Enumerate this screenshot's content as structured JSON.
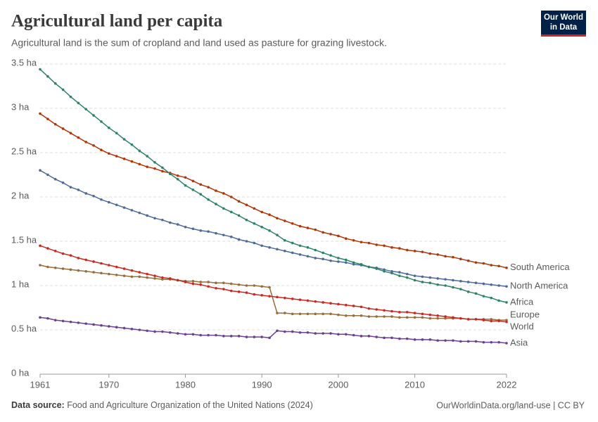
{
  "chart_data": {
    "type": "line",
    "title": "Agricultural land per capita",
    "subtitle": "Agricultural land is the sum of cropland and land used as pasture for grazing livestock.",
    "logo": [
      "Our World",
      "in Data"
    ],
    "source_label": "Data source:",
    "source": "Food and Agriculture Organization of the United Nations (2024)",
    "credit": "OurWorldinData.org/land-use | CC BY",
    "grid": true,
    "xlim": [
      1961,
      2022
    ],
    "xticks": [
      1961,
      1970,
      1980,
      1990,
      2000,
      2010,
      2022
    ],
    "ylim": [
      0,
      3.5
    ],
    "yticks": [
      {
        "value": 0,
        "label": "0 ha"
      },
      {
        "value": 0.5,
        "label": "0.5 ha"
      },
      {
        "value": 1,
        "label": "1 ha"
      },
      {
        "value": 1.5,
        "label": "1.5 ha"
      },
      {
        "value": 2,
        "label": "2 ha"
      },
      {
        "value": 2.5,
        "label": "2.5 ha"
      },
      {
        "value": 3,
        "label": "3 ha"
      },
      {
        "value": 3.5,
        "label": "3.5 ha"
      }
    ],
    "x": [
      1961,
      1962,
      1963,
      1964,
      1965,
      1966,
      1967,
      1968,
      1969,
      1970,
      1971,
      1972,
      1973,
      1974,
      1975,
      1976,
      1977,
      1978,
      1979,
      1980,
      1981,
      1982,
      1983,
      1984,
      1985,
      1986,
      1987,
      1988,
      1989,
      1990,
      1991,
      1992,
      1993,
      1994,
      1995,
      1996,
      1997,
      1998,
      1999,
      2000,
      2001,
      2002,
      2003,
      2004,
      2005,
      2006,
      2007,
      2008,
      2009,
      2010,
      2011,
      2012,
      2013,
      2014,
      2015,
      2016,
      2017,
      2018,
      2019,
      2020,
      2021,
      2022
    ],
    "series": [
      {
        "name": "South America",
        "color": "#b13507",
        "values": [
          2.94,
          2.88,
          2.82,
          2.77,
          2.72,
          2.67,
          2.62,
          2.58,
          2.53,
          2.49,
          2.46,
          2.43,
          2.4,
          2.37,
          2.34,
          2.32,
          2.29,
          2.27,
          2.24,
          2.22,
          2.18,
          2.14,
          2.11,
          2.07,
          2.04,
          2.0,
          1.95,
          1.91,
          1.87,
          1.83,
          1.8,
          1.76,
          1.73,
          1.7,
          1.67,
          1.65,
          1.63,
          1.6,
          1.58,
          1.56,
          1.53,
          1.51,
          1.49,
          1.48,
          1.46,
          1.45,
          1.43,
          1.42,
          1.4,
          1.39,
          1.38,
          1.36,
          1.35,
          1.33,
          1.32,
          1.3,
          1.28,
          1.26,
          1.25,
          1.23,
          1.22,
          1.2
        ]
      },
      {
        "name": "North America",
        "color": "#4c6a9c",
        "values": [
          2.3,
          2.25,
          2.2,
          2.16,
          2.11,
          2.08,
          2.04,
          2.01,
          1.97,
          1.94,
          1.91,
          1.88,
          1.85,
          1.82,
          1.79,
          1.76,
          1.74,
          1.71,
          1.69,
          1.66,
          1.64,
          1.62,
          1.61,
          1.59,
          1.57,
          1.55,
          1.52,
          1.5,
          1.48,
          1.45,
          1.43,
          1.41,
          1.39,
          1.37,
          1.35,
          1.33,
          1.31,
          1.3,
          1.28,
          1.27,
          1.26,
          1.24,
          1.23,
          1.21,
          1.2,
          1.18,
          1.16,
          1.15,
          1.13,
          1.11,
          1.1,
          1.09,
          1.08,
          1.07,
          1.06,
          1.05,
          1.04,
          1.03,
          1.02,
          1.01,
          1.0,
          0.99
        ]
      },
      {
        "name": "Africa",
        "color": "#2c8465",
        "values": [
          3.44,
          3.36,
          3.28,
          3.21,
          3.13,
          3.06,
          2.99,
          2.92,
          2.85,
          2.78,
          2.72,
          2.65,
          2.59,
          2.52,
          2.46,
          2.39,
          2.33,
          2.26,
          2.2,
          2.13,
          2.08,
          2.03,
          1.97,
          1.92,
          1.87,
          1.83,
          1.79,
          1.74,
          1.7,
          1.66,
          1.62,
          1.57,
          1.51,
          1.48,
          1.45,
          1.43,
          1.4,
          1.37,
          1.34,
          1.31,
          1.29,
          1.26,
          1.24,
          1.21,
          1.19,
          1.16,
          1.14,
          1.11,
          1.09,
          1.06,
          1.04,
          1.03,
          1.01,
          1.0,
          0.98,
          0.96,
          0.93,
          0.91,
          0.88,
          0.86,
          0.83,
          0.81
        ]
      },
      {
        "name": "Europe",
        "color": "#996d39",
        "values": [
          1.23,
          1.21,
          1.2,
          1.19,
          1.18,
          1.17,
          1.16,
          1.15,
          1.14,
          1.13,
          1.12,
          1.11,
          1.1,
          1.1,
          1.09,
          1.08,
          1.07,
          1.07,
          1.06,
          1.05,
          1.05,
          1.04,
          1.04,
          1.03,
          1.03,
          1.02,
          1.01,
          1.0,
          1.0,
          0.99,
          0.98,
          0.69,
          0.69,
          0.68,
          0.68,
          0.68,
          0.68,
          0.68,
          0.68,
          0.67,
          0.66,
          0.66,
          0.66,
          0.65,
          0.65,
          0.65,
          0.65,
          0.64,
          0.64,
          0.64,
          0.64,
          0.63,
          0.63,
          0.63,
          0.63,
          0.63,
          0.62,
          0.62,
          0.62,
          0.62,
          0.61,
          0.61
        ]
      },
      {
        "name": "World",
        "color": "#ce261e",
        "values": [
          1.45,
          1.42,
          1.39,
          1.36,
          1.34,
          1.31,
          1.29,
          1.27,
          1.25,
          1.23,
          1.21,
          1.19,
          1.17,
          1.15,
          1.13,
          1.11,
          1.09,
          1.08,
          1.06,
          1.04,
          1.02,
          1.01,
          0.99,
          0.97,
          0.96,
          0.94,
          0.93,
          0.92,
          0.9,
          0.89,
          0.88,
          0.87,
          0.86,
          0.85,
          0.84,
          0.83,
          0.82,
          0.81,
          0.8,
          0.79,
          0.78,
          0.77,
          0.76,
          0.74,
          0.73,
          0.72,
          0.71,
          0.7,
          0.7,
          0.69,
          0.68,
          0.67,
          0.66,
          0.65,
          0.64,
          0.63,
          0.62,
          0.62,
          0.61,
          0.6,
          0.6,
          0.59
        ]
      },
      {
        "name": "Asia",
        "color": "#6d3e91",
        "values": [
          0.64,
          0.63,
          0.61,
          0.6,
          0.59,
          0.58,
          0.57,
          0.56,
          0.55,
          0.54,
          0.53,
          0.52,
          0.51,
          0.5,
          0.49,
          0.48,
          0.48,
          0.47,
          0.46,
          0.45,
          0.45,
          0.44,
          0.44,
          0.44,
          0.43,
          0.43,
          0.43,
          0.42,
          0.42,
          0.42,
          0.41,
          0.49,
          0.48,
          0.48,
          0.47,
          0.47,
          0.46,
          0.46,
          0.46,
          0.45,
          0.45,
          0.44,
          0.43,
          0.43,
          0.42,
          0.41,
          0.41,
          0.4,
          0.4,
          0.39,
          0.39,
          0.39,
          0.38,
          0.38,
          0.38,
          0.37,
          0.37,
          0.37,
          0.36,
          0.36,
          0.36,
          0.35
        ]
      }
    ]
  }
}
